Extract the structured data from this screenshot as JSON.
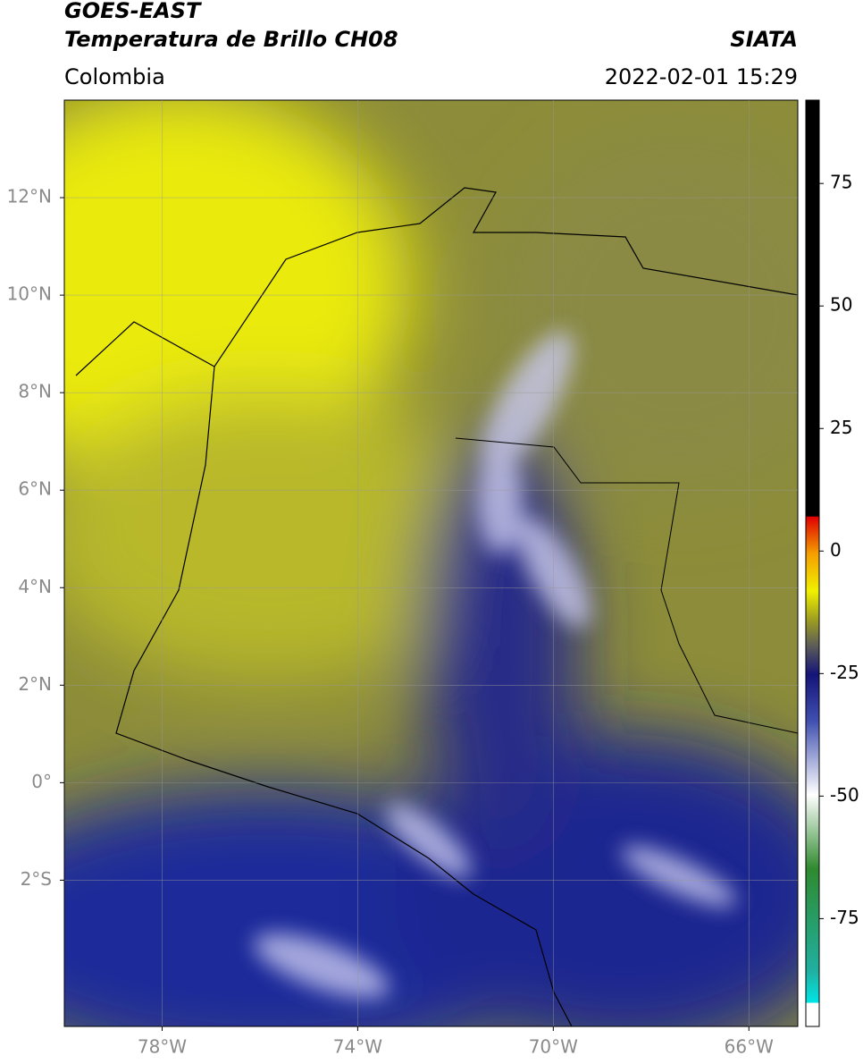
{
  "header": {
    "title": "GOES-EAST",
    "subtitle": "Temperatura de Brillo CH08",
    "region": "Colombia",
    "source": "SIATA",
    "datetime": "2022-02-01 15:29"
  },
  "map": {
    "xlim": [
      -80,
      -65
    ],
    "ylim": [
      -5,
      14
    ],
    "lon_ticks": [
      {
        "value": -78,
        "label": "78°W"
      },
      {
        "value": -74,
        "label": "74°W"
      },
      {
        "value": -70,
        "label": "70°W"
      },
      {
        "value": -66,
        "label": "66°W"
      }
    ],
    "lat_ticks": [
      {
        "value": 12,
        "label": "12°N"
      },
      {
        "value": 10,
        "label": "10°N"
      },
      {
        "value": 8,
        "label": "8°N"
      },
      {
        "value": 6,
        "label": "6°N"
      },
      {
        "value": 4,
        "label": "4°N"
      },
      {
        "value": 2,
        "label": "2°N"
      },
      {
        "value": 0,
        "label": "0°"
      },
      {
        "value": -2,
        "label": "2°S"
      }
    ]
  },
  "colorbar": {
    "lim": [
      -97,
      92
    ],
    "ticks": [
      75,
      50,
      25,
      0,
      -25,
      -50,
      -75
    ]
  }
}
